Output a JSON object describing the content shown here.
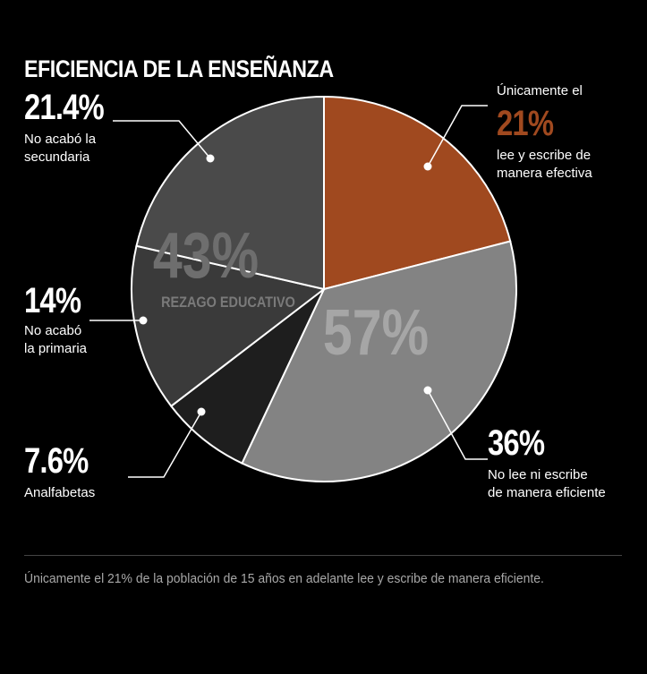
{
  "title": "EFICIENCIA DE LA ENSEÑANZA",
  "chart_data": {
    "type": "pie",
    "title": "EFICIENCIA DE LA ENSEÑANZA",
    "slices": [
      {
        "label": "lee y escribe de manera efectiva",
        "value": 21,
        "color": "#a0491f"
      },
      {
        "label": "No lee ni escribe de manera eficiente",
        "value": 36,
        "color": "#838383"
      },
      {
        "label": "Analfabetas",
        "value": 7.6,
        "color": "#1e1e1e"
      },
      {
        "label": "No acabó la primaria",
        "value": 14,
        "color": "#3a3a3a"
      },
      {
        "label": "No acabó la secundaria",
        "value": 21.4,
        "color": "#4a4a4a"
      }
    ],
    "group_labels": {
      "rezago_pct": "43%",
      "rezago_text": "REZAGO EDUCATIVO",
      "eficiente_pct": "57%"
    }
  },
  "callouts": {
    "secundaria": {
      "pct": "21.4%",
      "desc": "No acabó la\nsecundaria"
    },
    "primaria": {
      "pct": "14%",
      "desc": "No acabó\nla primaria"
    },
    "analfabetas": {
      "pct": "7.6%",
      "desc": "Analfabetas"
    },
    "efectiva": {
      "pre": "Únicamente el",
      "pct": "21%",
      "desc": "lee y escribe de\nmanera efectiva",
      "accent": "#a0491f"
    },
    "ineficiente": {
      "pct": "36%",
      "desc": "No lee ni escribe\nde manera eficiente"
    }
  },
  "footer": "Únicamente el 21% de la población de 15 años en adelante lee y escribe de manera eficiente."
}
